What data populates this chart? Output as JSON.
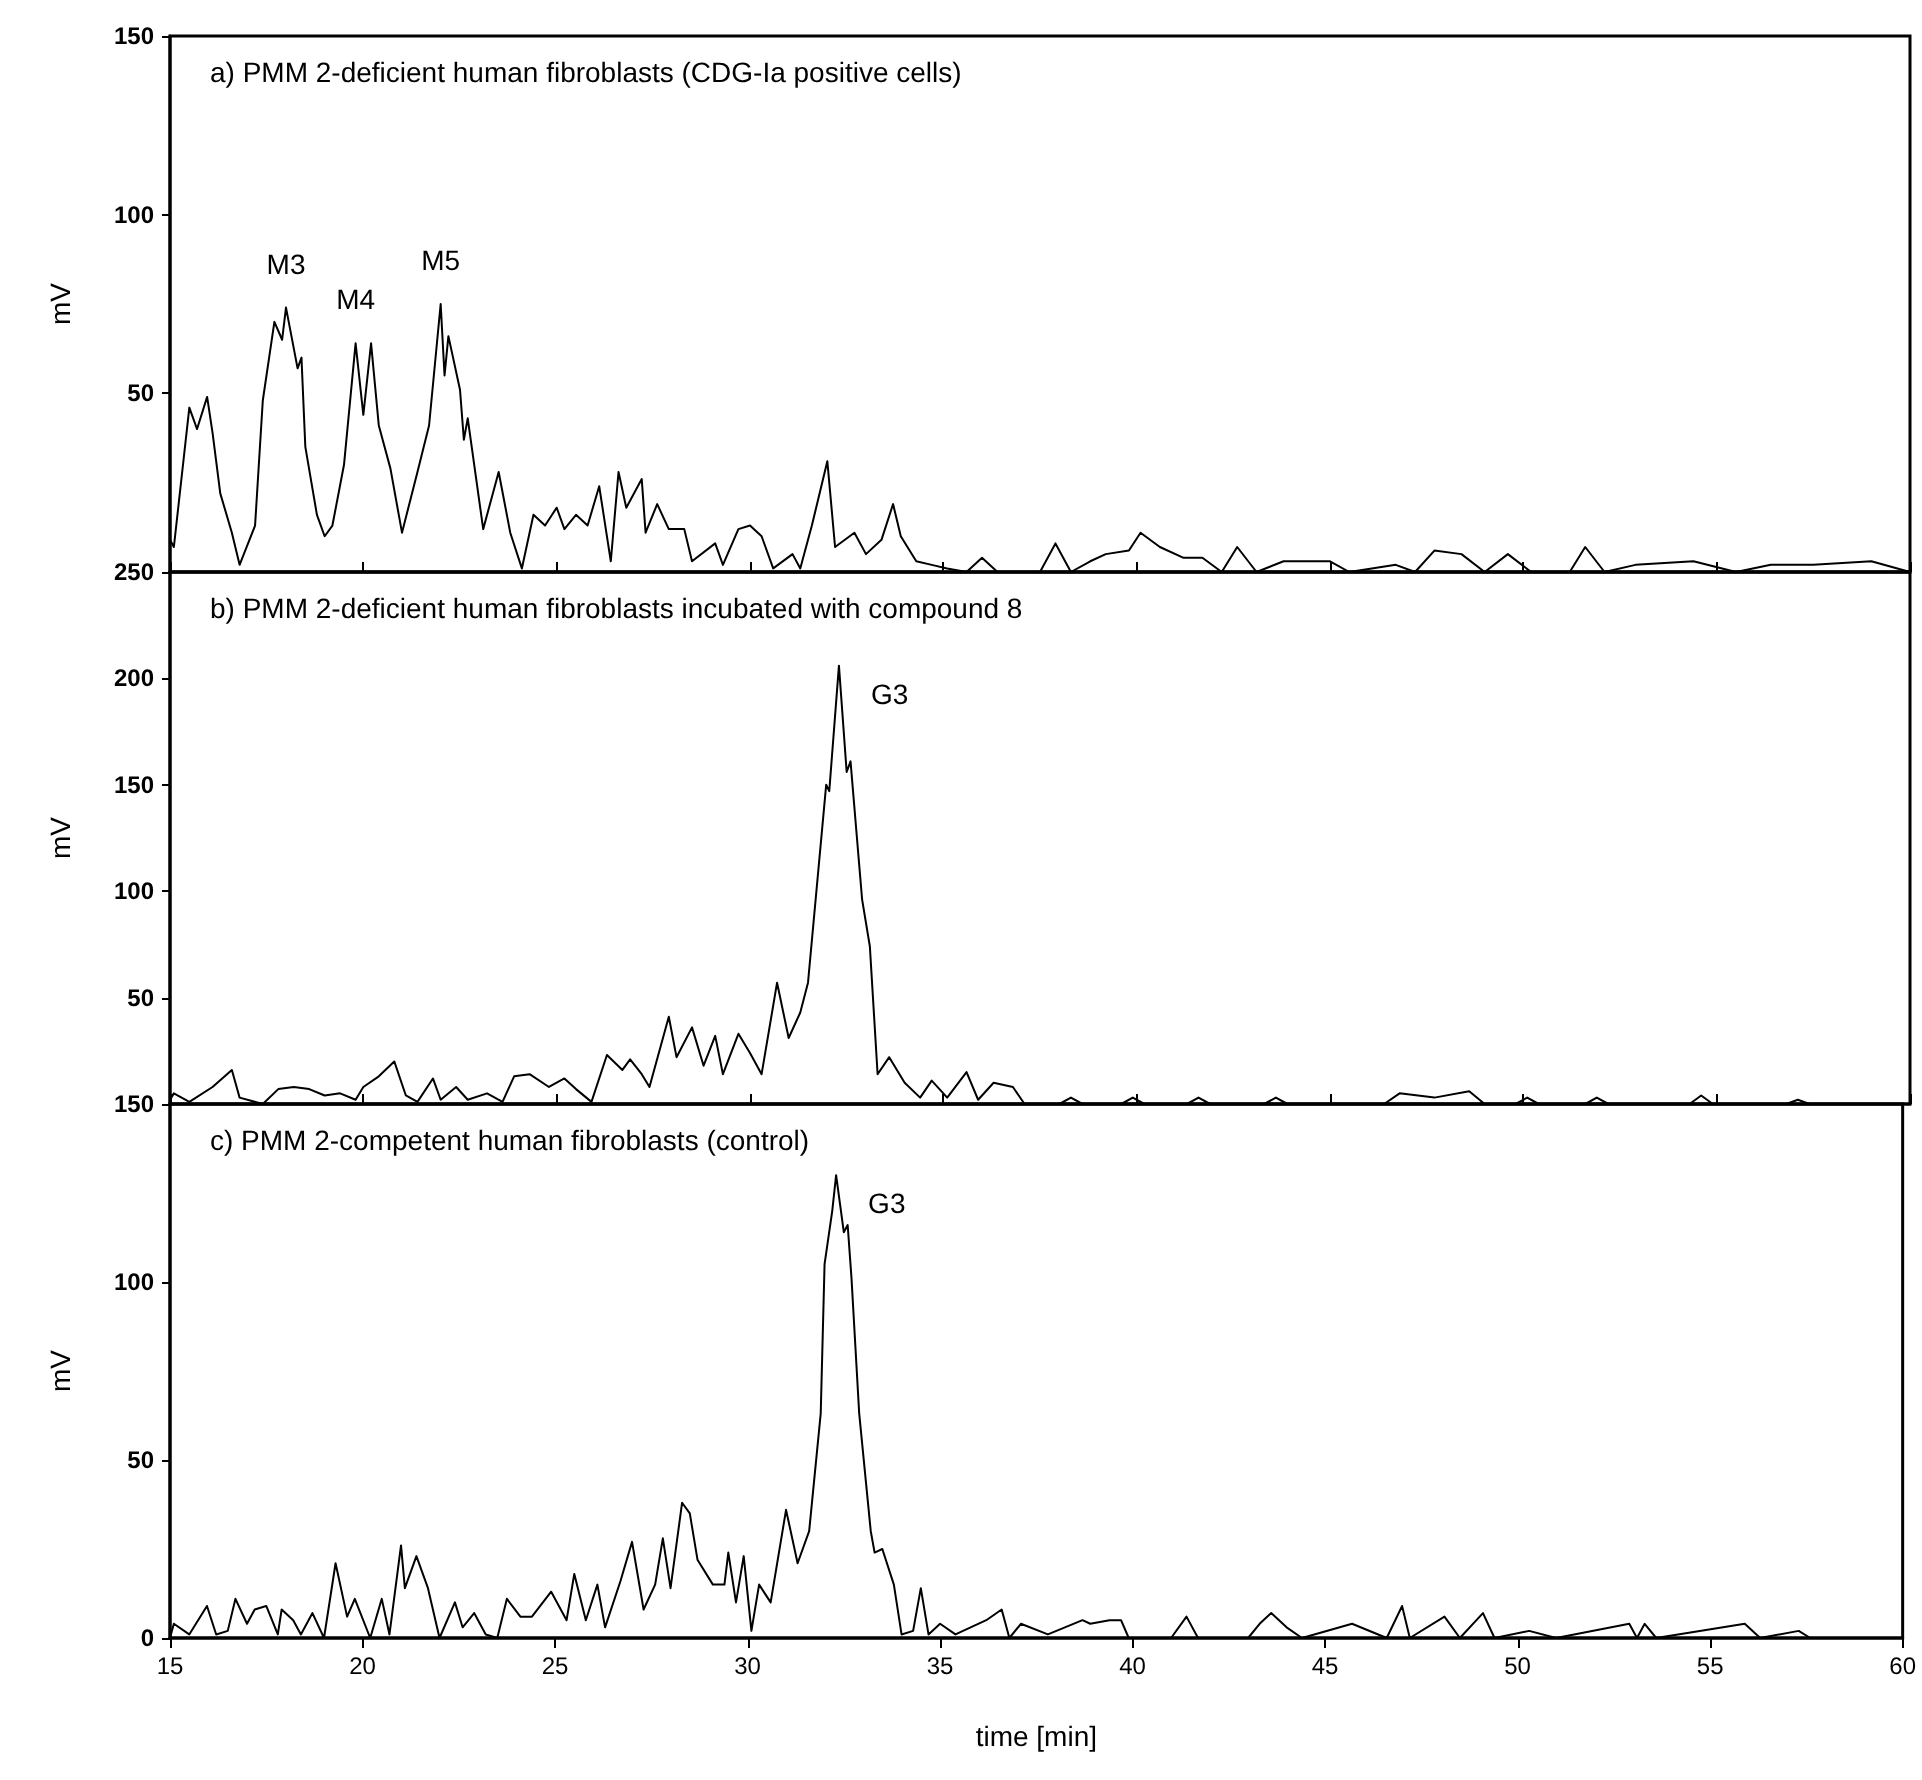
{
  "chart_data": [
    {
      "type": "line",
      "title": "a) PMM 2-deficient human fibroblasts (CDG-Ia positive cells)",
      "ylabel": "mV",
      "xlim": [
        15,
        60
      ],
      "xticks": [
        15,
        20,
        25,
        30,
        35,
        40,
        45,
        50,
        55,
        60
      ],
      "ylim": [
        0,
        150
      ],
      "yticks": [
        50,
        100,
        150
      ],
      "tick_labels": "y",
      "grid": false,
      "marker": "none",
      "line_style": "solid",
      "annotations": [
        {
          "text": "M3",
          "x": 18.0,
          "y": 74
        },
        {
          "text": "M4",
          "x": 19.8,
          "y": 64
        },
        {
          "text": "M5",
          "x": 22.0,
          "y": 75
        }
      ],
      "series": [
        {
          "color": "#000000",
          "x": [
            15.0,
            15.1,
            15.5,
            15.7,
            15.96,
            16.1,
            16.3,
            16.6,
            16.8,
            17.2,
            17.4,
            17.7,
            17.9,
            18.0,
            18.3,
            18.4,
            18.5,
            18.8,
            19.0,
            19.2,
            19.5,
            19.8,
            20.0,
            20.2,
            20.4,
            20.7,
            21.0,
            21.4,
            21.7,
            22.0,
            22.1,
            22.2,
            22.5,
            22.6,
            22.7,
            23.1,
            23.5,
            23.8,
            24.1,
            24.4,
            24.7,
            25.0,
            25.2,
            25.5,
            25.8,
            26.1,
            26.4,
            26.6,
            26.8,
            27.2,
            27.3,
            27.6,
            27.9,
            28.3,
            28.5,
            29.1,
            29.3,
            29.7,
            30.0,
            30.3,
            30.6,
            31.1,
            31.3,
            31.6,
            32.0,
            32.2,
            32.7,
            33.0,
            33.4,
            33.7,
            33.9,
            34.3,
            34.7,
            35.1,
            35.6,
            36.0,
            36.4,
            37.5,
            37.9,
            38.3,
            38.8,
            39.2,
            39.8,
            40.1,
            40.6,
            41.2,
            41.7,
            42.2,
            42.6,
            43.1,
            43.8,
            44.3,
            45.0,
            45.5,
            46.7,
            47.2,
            47.7,
            48.4,
            49.0,
            49.6,
            50.2,
            51.2,
            51.6,
            52.1,
            52.9,
            54.4,
            55.5,
            56.4,
            57.5,
            59.0,
            60.0
          ],
          "values": [
            9,
            7,
            46,
            40,
            49,
            39,
            22,
            11,
            2,
            13,
            48,
            70,
            65,
            74,
            57,
            60,
            35,
            16,
            10,
            13,
            30,
            64,
            44,
            64,
            41,
            29,
            11,
            28,
            41,
            75,
            55,
            66,
            51,
            37,
            43,
            12,
            28,
            11,
            1,
            16,
            13,
            18,
            12,
            16,
            13,
            24,
            3,
            28,
            18,
            26,
            11,
            19,
            12,
            12,
            3,
            8,
            2,
            12,
            13,
            10,
            1,
            5,
            1,
            13,
            31,
            7,
            11,
            5,
            9,
            19,
            10,
            3,
            2,
            1,
            0,
            4,
            0,
            0,
            8,
            0,
            3,
            5,
            6,
            11,
            7,
            4,
            4,
            0,
            7,
            0,
            3,
            3,
            3,
            0,
            2,
            0,
            6,
            5,
            0,
            5,
            0,
            0,
            7,
            0,
            2,
            3,
            0,
            2,
            2,
            3,
            0
          ]
        }
      ]
    },
    {
      "type": "line",
      "title": "b) PMM 2-deficient human fibroblasts incubated with compound 8",
      "ylabel": "mV",
      "xlim": [
        15,
        60
      ],
      "xticks": [
        15,
        20,
        25,
        30,
        35,
        40,
        45,
        50,
        55,
        60
      ],
      "ylim": [
        0,
        250
      ],
      "yticks": [
        50,
        100,
        150,
        200,
        250
      ],
      "tick_labels": "y",
      "grid": false,
      "marker": "none",
      "line_style": "solid",
      "annotations": [
        {
          "text": "G3",
          "x": 32.3,
          "y": 206
        }
      ],
      "series": [
        {
          "color": "#000000",
          "x": [
            15.0,
            15.1,
            15.5,
            16.1,
            16.6,
            16.8,
            17.4,
            17.8,
            18.2,
            18.6,
            19.0,
            19.4,
            19.8,
            20.0,
            20.4,
            20.8,
            21.1,
            21.4,
            21.8,
            22.0,
            22.4,
            22.7,
            23.2,
            23.6,
            23.9,
            24.3,
            24.8,
            25.2,
            25.5,
            25.9,
            26.3,
            26.7,
            26.9,
            27.2,
            27.4,
            27.9,
            28.1,
            28.5,
            28.8,
            29.1,
            29.3,
            29.7,
            30.0,
            30.3,
            30.7,
            31.0,
            31.3,
            31.5,
            31.97,
            32.05,
            32.3,
            32.5,
            32.6,
            32.9,
            33.1,
            33.3,
            33.6,
            34.0,
            34.4,
            34.7,
            35.1,
            35.6,
            35.9,
            36.3,
            36.8,
            37.1,
            38.0,
            38.3,
            38.6,
            39.6,
            39.9,
            40.2,
            41.3,
            41.6,
            41.9,
            43.3,
            43.6,
            43.9,
            46.4,
            46.8,
            47.7,
            48.6,
            49.0,
            49.8,
            50.1,
            50.4,
            51.6,
            51.9,
            52.2,
            54.3,
            54.6,
            54.9,
            56.8,
            57.1,
            57.4,
            60.0
          ],
          "values": [
            2,
            5,
            1,
            8,
            16,
            3,
            0,
            7,
            8,
            7,
            4,
            5,
            2,
            8,
            13,
            20,
            4,
            1,
            12,
            2,
            8,
            2,
            5,
            1,
            13,
            14,
            8,
            12,
            7,
            1,
            23,
            16,
            21,
            14,
            8,
            41,
            22,
            36,
            18,
            32,
            14,
            33,
            24,
            14,
            57,
            31,
            43,
            57,
            150,
            147,
            206,
            156,
            161,
            96,
            74,
            14,
            22,
            10,
            3,
            11,
            3,
            15,
            2,
            10,
            8,
            0,
            0,
            3,
            0,
            0,
            3,
            0,
            0,
            3,
            0,
            0,
            3,
            0,
            0,
            5,
            3,
            6,
            0,
            0,
            3,
            0,
            0,
            3,
            0,
            0,
            4,
            0,
            0,
            2,
            0,
            0
          ]
        }
      ]
    },
    {
      "type": "line",
      "title": "c) PMM 2-competent human fibroblasts (control)",
      "ylabel": "mV",
      "xlabel": "time [min]",
      "xlim": [
        15,
        60
      ],
      "xticks": [
        15,
        20,
        25,
        30,
        35,
        40,
        45,
        50,
        55,
        60
      ],
      "ylim": [
        0,
        150
      ],
      "yticks": [
        0,
        50,
        100,
        150
      ],
      "grid": false,
      "marker": "none",
      "line_style": "solid",
      "annotations": [
        {
          "text": "G3",
          "x": 32.3,
          "y": 130
        }
      ],
      "series": [
        {
          "color": "#000000",
          "x": [
            15.0,
            15.1,
            15.5,
            15.96,
            16.2,
            16.5,
            16.7,
            17.0,
            17.2,
            17.5,
            17.8,
            17.9,
            18.2,
            18.4,
            18.7,
            19.0,
            19.3,
            19.6,
            19.8,
            20.2,
            20.5,
            20.7,
            21.0,
            21.1,
            21.4,
            21.7,
            22.0,
            22.4,
            22.6,
            22.9,
            23.2,
            23.5,
            23.75,
            24.1,
            24.4,
            24.9,
            25.3,
            25.5,
            25.8,
            26.1,
            26.3,
            26.7,
            27.0,
            27.3,
            27.6,
            27.8,
            28.0,
            28.3,
            28.5,
            28.7,
            29.1,
            29.4,
            29.5,
            29.7,
            29.9,
            30.1,
            30.3,
            30.6,
            31.0,
            31.3,
            31.6,
            31.9,
            32.0,
            32.2,
            32.3,
            32.5,
            32.6,
            32.7,
            32.9,
            33.2,
            33.3,
            33.5,
            33.8,
            34.0,
            34.3,
            34.5,
            34.7,
            35.0,
            35.4,
            36.2,
            36.6,
            36.8,
            37.1,
            37.8,
            38.7,
            38.9,
            39.4,
            39.7,
            39.9,
            41.0,
            41.4,
            41.7,
            43.0,
            43.3,
            43.6,
            44.0,
            44.4,
            45.7,
            46.6,
            47.0,
            47.2,
            48.1,
            48.5,
            49.1,
            49.4,
            50.3,
            51.0,
            52.9,
            53.1,
            53.3,
            53.6,
            55.9,
            56.3,
            57.3,
            57.6,
            59.8
          ],
          "values": [
            0,
            4,
            1,
            9,
            1,
            2,
            11,
            4,
            8,
            9,
            1,
            8,
            5,
            1,
            7,
            0,
            21,
            6,
            11,
            0,
            11,
            1,
            26,
            14,
            23,
            14,
            0,
            10,
            3,
            7,
            1,
            0,
            11,
            6,
            6,
            13,
            5,
            18,
            5,
            15,
            3,
            16,
            27,
            8,
            15,
            28,
            14,
            38,
            35,
            22,
            15,
            15,
            24,
            10,
            23,
            2,
            15,
            10,
            36,
            21,
            30,
            63,
            105,
            120,
            130,
            114,
            116,
            101,
            63,
            30,
            24,
            25,
            15,
            1,
            2,
            14,
            1,
            4,
            1,
            5,
            8,
            0,
            4,
            1,
            5,
            4,
            5,
            5,
            0,
            0,
            6,
            0,
            0,
            4,
            7,
            3,
            0,
            4,
            0,
            9,
            0,
            6,
            0,
            7,
            0,
            2,
            0,
            4,
            0,
            4,
            0,
            4,
            0,
            2,
            0,
            0
          ]
        }
      ]
    }
  ]
}
